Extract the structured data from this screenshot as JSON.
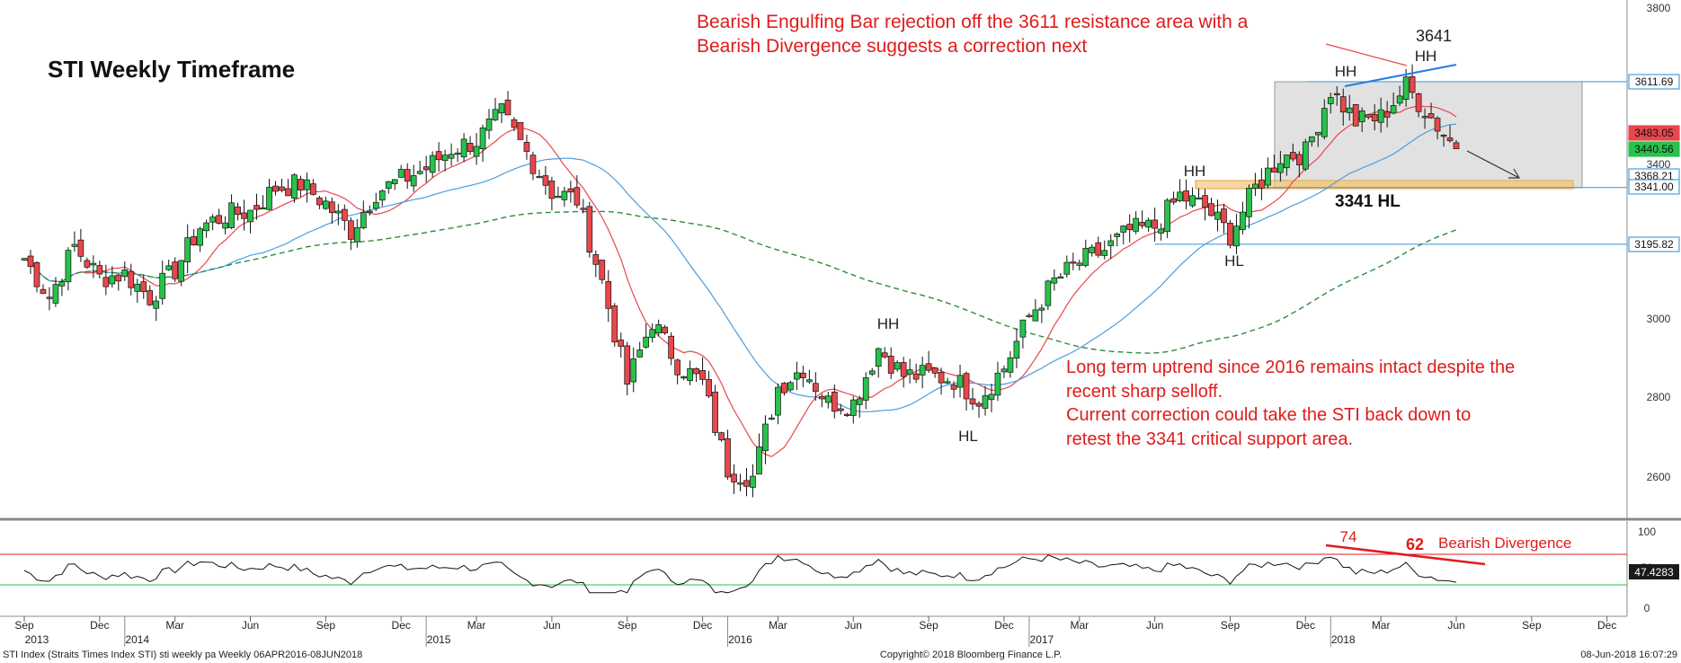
{
  "chart_data": {
    "type": "candlestick",
    "title": "STI Weekly Timeframe",
    "price_panel": {
      "ylim": [
        2480,
        3810
      ],
      "y_ticks": [
        "3800",
        "3400",
        "3000",
        "2800",
        "2600"
      ],
      "series": [
        {
          "name": "",
          "kind": "candles",
          "waypoints": [
            [
              "2013-09",
              3160
            ],
            [
              "2013-10",
              3060
            ],
            [
              "2013-11",
              3190
            ],
            [
              "2013-12",
              3110
            ],
            [
              "2014-01",
              3120
            ],
            [
              "2014-02",
              3060
            ],
            [
              "2014-03",
              3130
            ],
            [
              "2014-04",
              3240
            ],
            [
              "2014-05",
              3270
            ],
            [
              "2014-06",
              3280
            ],
            [
              "2014-07",
              3340
            ],
            [
              "2014-08",
              3350
            ],
            [
              "2014-09",
              3300
            ],
            [
              "2014-10",
              3230
            ],
            [
              "2014-11",
              3330
            ],
            [
              "2014-12",
              3360
            ],
            [
              "2015-01",
              3390
            ],
            [
              "2015-02",
              3440
            ],
            [
              "2015-03",
              3460
            ],
            [
              "2015-04",
              3530
            ],
            [
              "2015-05",
              3430
            ],
            [
              "2015-06",
              3330
            ],
            [
              "2015-07",
              3310
            ],
            [
              "2015-08",
              3100
            ],
            [
              "2015-09",
              2840
            ],
            [
              "2015-10",
              3000
            ],
            [
              "2015-11",
              2890
            ],
            [
              "2015-12",
              2840
            ],
            [
              "2016-01",
              2620
            ],
            [
              "2016-02",
              2600
            ],
            [
              "2016-03",
              2830
            ],
            [
              "2016-04",
              2880
            ],
            [
              "2016-05",
              2790
            ],
            [
              "2016-06",
              2790
            ],
            [
              "2016-07",
              2930
            ],
            [
              "2016-08",
              2860
            ],
            [
              "2016-09",
              2860
            ],
            [
              "2016-10",
              2850
            ],
            [
              "2016-11",
              2800
            ],
            [
              "2016-12",
              2880
            ],
            [
              "2017-01",
              3010
            ],
            [
              "2017-02",
              3100
            ],
            [
              "2017-03",
              3150
            ],
            [
              "2017-04",
              3180
            ],
            [
              "2017-05",
              3230
            ],
            [
              "2017-06",
              3240
            ],
            [
              "2017-07",
              3320
            ],
            [
              "2017-08",
              3290
            ],
            [
              "2017-09",
              3220
            ],
            [
              "2017-10",
              3340
            ],
            [
              "2017-11",
              3420
            ],
            [
              "2017-12",
              3430
            ],
            [
              "2018-01",
              3590
            ],
            [
              "2018-02",
              3510
            ],
            [
              "2018-03",
              3520
            ],
            [
              "2018-04",
              3600
            ],
            [
              "2018-05",
              3520
            ],
            [
              "2018-06",
              3440
            ]
          ]
        },
        {
          "name": "",
          "kind": "sma",
          "color": "#e8474b"
        },
        {
          "name": "",
          "kind": "sma",
          "color": "#4a9ede"
        },
        {
          "name": "",
          "kind": "sma_dashed",
          "color": "#2e8b3a"
        }
      ],
      "price_tags": [
        {
          "value": 3611.69,
          "label": "3611.69",
          "color": "#4a9ede"
        },
        {
          "value": 3483.05,
          "label": "3483.05",
          "color": "#e8474b"
        },
        {
          "value": 3440.56,
          "label": "3440.56",
          "color": "#27c24c"
        },
        {
          "value": 3368.21,
          "label": "3368.21",
          "color": "#4a9ede"
        },
        {
          "value": 3341.0,
          "label": "3341.00",
          "color": "#4a9ede"
        },
        {
          "value": 3195.82,
          "label": "3195.82",
          "color": "#4a9ede"
        }
      ],
      "horizontal_lines": [
        {
          "value": 3611.69,
          "from": "2017-12",
          "color": "#4a9ede"
        },
        {
          "value": 3341.0,
          "from": "2017-10",
          "color": "#4a9ede"
        },
        {
          "value": 3195.82,
          "from": "2017-06",
          "color": "#4a9ede"
        }
      ]
    },
    "rsi_panel": {
      "ylim": [
        -10,
        105
      ],
      "y_ticks": [
        "100",
        "50",
        "0"
      ],
      "overbought": 70,
      "oversold": 30,
      "last_value": "47.4283",
      "divergence_labels": [
        "74",
        "62"
      ]
    },
    "x_ticks": [
      "Sep",
      "Dec",
      "Mar",
      "Jun",
      "Sep",
      "Dec",
      "Mar",
      "Jun",
      "Sep",
      "Dec",
      "Mar",
      "Jun",
      "Sep",
      "Dec",
      "Mar",
      "Jun",
      "Sep",
      "Dec",
      "Mar",
      "Jun",
      "Sep",
      "Dec"
    ],
    "x_years": [
      "2013",
      "2014",
      "2015",
      "2016",
      "2017",
      "2018"
    ],
    "annotations": {
      "top_note_line1": "Bearish Engulfing Bar rejection off the 3611 resistance area with a",
      "top_note_line2": "Bearish Divergence suggests a correction next",
      "peak_value": "3641",
      "hh": "HH",
      "hl": "HL",
      "support_label": "3341 HL",
      "bottom_note": [
        "Long term uptrend since 2016 remains intact despite the",
        "recent sharp selloff.",
        "Current correction could take the STI back down to",
        "retest the 3341 critical support area."
      ],
      "bearish_divergence": "Bearish Divergence"
    }
  },
  "footer": {
    "left": "STI Index (Straits Times Index STI) sti weekly pa   Weekly 06APR2016-08JUN2018",
    "center": "Copyright© 2018 Bloomberg Finance L.P.",
    "right": "08-Jun-2018 16:07:29"
  }
}
